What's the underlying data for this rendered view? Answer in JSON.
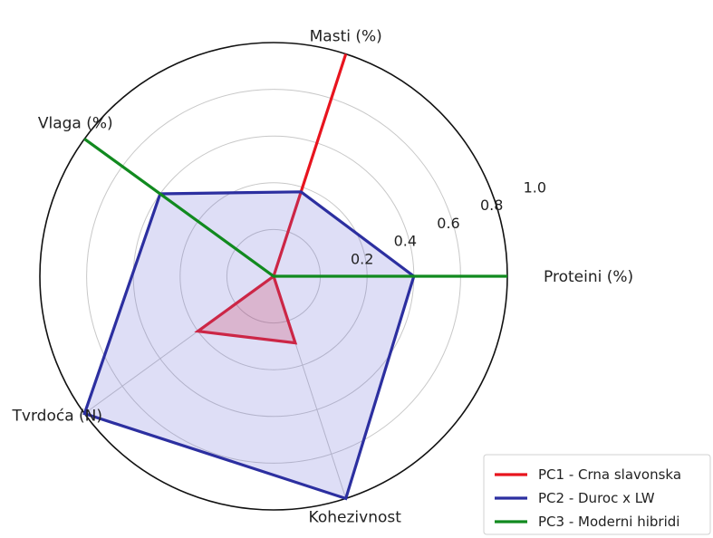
{
  "chart_data": {
    "type": "radar",
    "axes": [
      "Proteini (%)",
      "Masti (%)",
      "Vlaga (%)",
      "Tvrdoća (N)",
      "Kohezivnost"
    ],
    "radial_ticks": [
      "0.2",
      "0.4",
      "0.6",
      "0.8",
      "1.0"
    ],
    "radial_tick_values": [
      0.2,
      0.4,
      0.6,
      0.8,
      1.0
    ],
    "rlim": [
      0,
      1.0
    ],
    "grid": true,
    "legend_position": "bottom-right",
    "series": [
      {
        "name": "PC1 - Crna slavonska",
        "color": "#e8141e",
        "fill": "#e8141e",
        "fill_opacity": 0.22,
        "values": [
          0.0,
          1.0,
          0.0,
          0.4,
          0.3
        ]
      },
      {
        "name": "PC2 - Duroc x LW",
        "color": "#2c2fa0",
        "fill": "#6b6bd6",
        "fill_opacity": 0.22,
        "values": [
          0.6,
          0.38,
          0.6,
          1.0,
          1.0
        ]
      },
      {
        "name": "PC3 - Moderni hibridi",
        "color": "#118a1f",
        "fill": "none",
        "fill_opacity": 0,
        "values": [
          1.0,
          0.0,
          1.0,
          0.0,
          0.0
        ]
      }
    ]
  }
}
